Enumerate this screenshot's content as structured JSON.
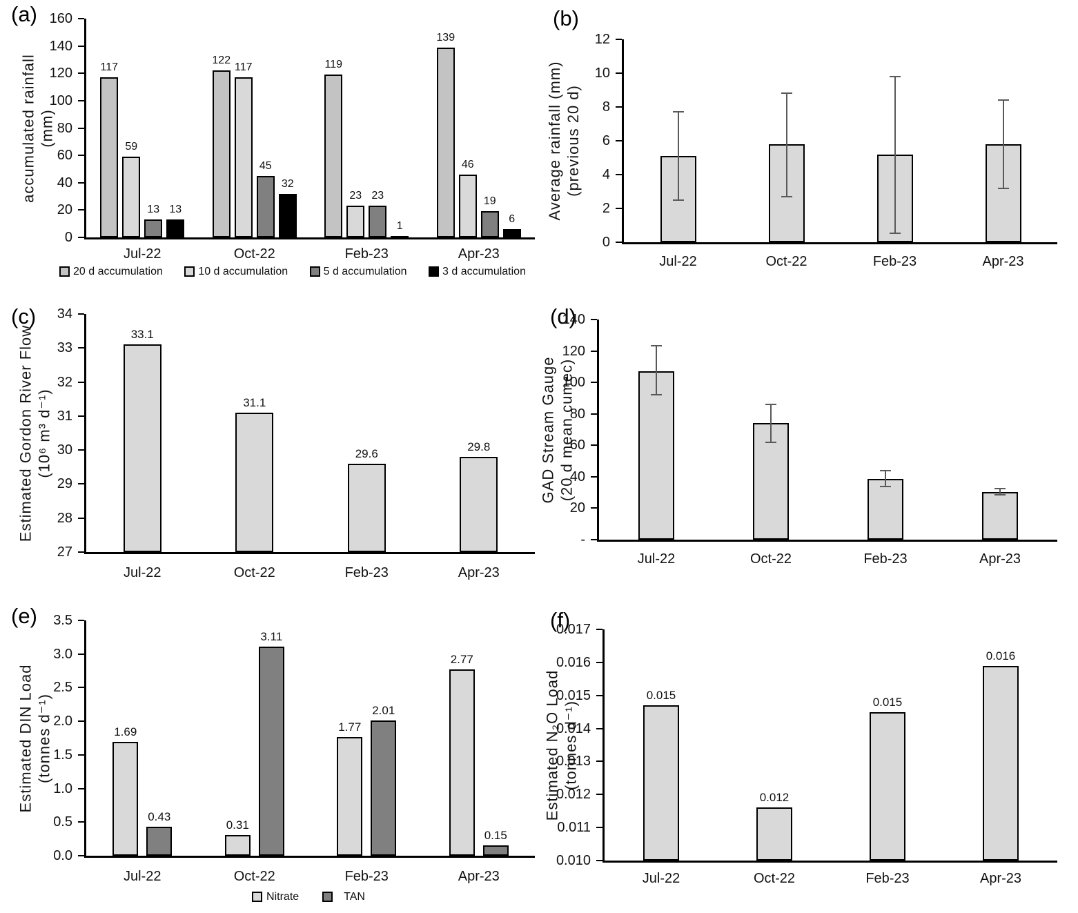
{
  "chart_data": [
    {
      "panel": "a",
      "panel_label": "(a)",
      "type": "bar",
      "title": "",
      "xlabel": "",
      "ylabel": "accumulated rainfall (mm)",
      "ylabel_lines": [
        "accumulated rainfall",
        "(mm)"
      ],
      "categories": [
        "Jul-22",
        "Oct-22",
        "Feb-23",
        "Apr-23"
      ],
      "ylim": [
        0,
        160
      ],
      "yticks": [
        "0",
        "20",
        "40",
        "60",
        "80",
        "100",
        "120",
        "140",
        "160"
      ],
      "grid": false,
      "legend_position": "bottom",
      "series": [
        {
          "name": "20 d accumulation",
          "color": "#c3c3c3",
          "values": [
            117,
            122,
            119,
            139
          ],
          "data_labels": [
            "117",
            "122",
            "119",
            "139"
          ]
        },
        {
          "name": "10 d accumulation",
          "color": "#d9d9d9",
          "values": [
            59,
            117,
            23,
            46
          ],
          "data_labels": [
            "59",
            "117",
            "23",
            "46"
          ]
        },
        {
          "name": "5 d accumulation",
          "color": "#808080",
          "values": [
            13,
            45,
            23,
            19
          ],
          "data_labels": [
            "13",
            "45",
            "23",
            "19"
          ]
        },
        {
          "name": "3 d accumulation",
          "color": "#000000",
          "values": [
            13,
            32,
            1,
            6
          ],
          "data_labels": [
            "13",
            "32",
            "1",
            "6"
          ]
        }
      ]
    },
    {
      "panel": "b",
      "panel_label": "(b)",
      "type": "bar",
      "title": "",
      "xlabel": "",
      "ylabel": "Average rainfall (mm) (previous 20 d)",
      "ylabel_lines": [
        "Average rainfall (mm)",
        "(previous 20 d)"
      ],
      "categories": [
        "Jul-22",
        "Oct-22",
        "Feb-23",
        "Apr-23"
      ],
      "ylim": [
        0,
        12
      ],
      "yticks": [
        "0",
        "2",
        "4",
        "6",
        "8",
        "10",
        "12"
      ],
      "grid": false,
      "legend_position": "none",
      "series": [
        {
          "name": "Average rainfall",
          "color": "#d9d9d9",
          "values": [
            5.1,
            5.8,
            5.2,
            5.8
          ],
          "error_upper": [
            7.7,
            8.8,
            9.8,
            8.4
          ],
          "error_lower": [
            2.5,
            2.7,
            0.55,
            3.2
          ]
        }
      ]
    },
    {
      "panel": "c",
      "panel_label": "(c)",
      "type": "bar",
      "title": "",
      "xlabel": "",
      "ylabel": "Estimated Gordon River Flow (10⁶ m³ d⁻¹)",
      "ylabel_lines": [
        "Estimated Gordon River Flow",
        "(10⁶ m³ d⁻¹)"
      ],
      "categories": [
        "Jul-22",
        "Oct-22",
        "Feb-23",
        "Apr-23"
      ],
      "ylim": [
        27,
        34
      ],
      "yticks": [
        "27",
        "28",
        "29",
        "30",
        "31",
        "32",
        "33",
        "34"
      ],
      "grid": false,
      "legend_position": "none",
      "series": [
        {
          "name": "Estimated Gordon River Flow",
          "color": "#d9d9d9",
          "values": [
            33.1,
            31.1,
            29.6,
            29.8
          ],
          "data_labels": [
            "33.1",
            "31.1",
            "29.6",
            "29.8"
          ]
        }
      ]
    },
    {
      "panel": "d",
      "panel_label": "(d)",
      "type": "bar",
      "title": "",
      "xlabel": "",
      "ylabel": "GAD Stream Gauge (20 d mean cumec)",
      "ylabel_lines": [
        "GAD Stream Gauge",
        "(20 d mean cumec)"
      ],
      "categories": [
        "Jul-22",
        "Oct-22",
        "Feb-23",
        "Apr-23"
      ],
      "ylim": [
        0,
        140
      ],
      "yticks": [
        "-",
        "20",
        "40",
        "60",
        "80",
        "100",
        "120",
        "140"
      ],
      "grid": false,
      "legend_position": "none",
      "series": [
        {
          "name": "GAD Stream Gauge",
          "color": "#d9d9d9",
          "values": [
            107,
            74,
            38.5,
            30.5
          ],
          "error_upper": [
            123.5,
            86,
            44,
            32.5
          ],
          "error_lower": [
            92,
            62,
            34,
            28.5
          ]
        }
      ]
    },
    {
      "panel": "e",
      "panel_label": "(e)",
      "type": "bar",
      "title": "",
      "xlabel": "",
      "ylabel": "Estimated DIN Load (tonnes d⁻¹)",
      "ylabel_lines": [
        "Estimated DIN Load",
        "(tonnes d⁻¹)"
      ],
      "categories": [
        "Jul-22",
        "Oct-22",
        "Feb-23",
        "Apr-23"
      ],
      "ylim": [
        0,
        3.5
      ],
      "yticks": [
        "0.0",
        "0.5",
        "1.0",
        "1.5",
        "2.0",
        "2.5",
        "3.0",
        "3.5"
      ],
      "grid": false,
      "legend_position": "bottom",
      "series": [
        {
          "name": "Nitrate",
          "color": "#d9d9d9",
          "values": [
            1.69,
            0.31,
            1.77,
            2.77
          ],
          "data_labels": [
            "1.69",
            "0.31",
            "1.77",
            "2.77"
          ]
        },
        {
          "name": "TAN",
          "color": "#808080",
          "values": [
            0.43,
            3.11,
            2.01,
            0.15
          ],
          "data_labels": [
            "0.43",
            "3.11",
            "2.01",
            "0.15"
          ]
        }
      ]
    },
    {
      "panel": "f",
      "panel_label": "(f)",
      "type": "bar",
      "title": "",
      "xlabel": "",
      "ylabel": "Estimated N₂O Load (tonnes d⁻¹)",
      "ylabel_lines": [
        "Estimated N₂O Load",
        "(tonnes d⁻¹)"
      ],
      "categories": [
        "Jul-22",
        "Oct-22",
        "Feb-23",
        "Apr-23"
      ],
      "ylim": [
        0.01,
        0.017
      ],
      "yticks": [
        "0.010",
        "0.011",
        "0.012",
        "0.013",
        "0.014",
        "0.015",
        "0.016",
        "0.017"
      ],
      "grid": false,
      "legend_position": "none",
      "series": [
        {
          "name": "Estimated N2O Load",
          "color": "#d9d9d9",
          "values": [
            0.0147,
            0.0116,
            0.0145,
            0.0159
          ],
          "data_labels": [
            "0.015",
            "0.012",
            "0.015",
            "0.016"
          ]
        }
      ]
    }
  ]
}
